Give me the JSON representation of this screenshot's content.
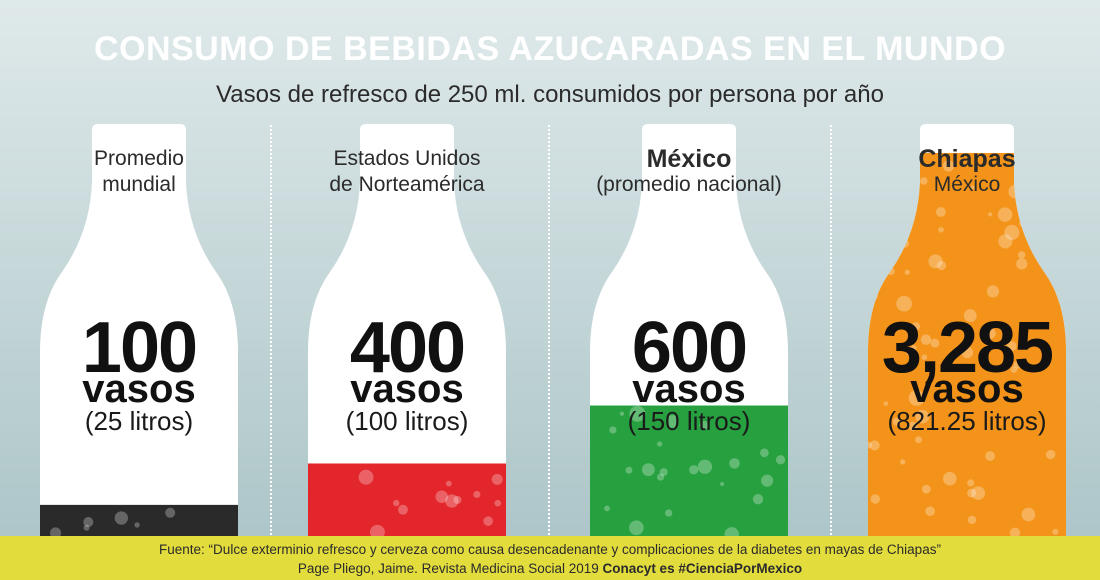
{
  "title": "CONSUMO DE BEBIDAS AZUCARADAS EN EL MUNDO",
  "subtitle": "Vasos de refresco de 250 ml. consumidos por persona por año",
  "panels": [
    {
      "line1": "Promedio",
      "line2": "mundial",
      "bold": false,
      "count": "100",
      "unit": "vasos",
      "liters": "(25 litros)",
      "color": "#2a2a2a"
    },
    {
      "line1": "Estados Unidos",
      "line2": "de Norteamérica",
      "bold": false,
      "count": "400",
      "unit": "vasos",
      "liters": "(100 litros)",
      "color": "#e3262b"
    },
    {
      "line1": "México",
      "line2": "(promedio nacional)",
      "bold": true,
      "count": "600",
      "unit": "vasos",
      "liters": "(150 litros)",
      "color": "#27a040"
    },
    {
      "line1": "Chiapas",
      "line2": "México",
      "bold": true,
      "count": "3,285",
      "unit": "vasos",
      "liters": "(821.25 litros)",
      "color": "#f39319"
    }
  ],
  "footer": {
    "line1": "Fuente: “Dulce exterminio refresco y cerveza como causa desencadenante y complicaciones de la diabetes en mayas de Chiapas”",
    "line2": "Page Pliego, Jaime. Revista Medicina Social 2019",
    "line2_bold": "Conacyt es #CienciaPorMexico"
  },
  "chart_data": {
    "type": "bar",
    "title": "CONSUMO DE BEBIDAS AZUCARADAS EN EL MUNDO",
    "subtitle": "Vasos de refresco de 250 ml. consumidos por persona por año",
    "categories": [
      "Promedio mundial",
      "Estados Unidos de Norteamérica",
      "México (promedio nacional)",
      "Chiapas México"
    ],
    "series": [
      {
        "name": "vasos",
        "values": [
          100,
          400,
          600,
          3285
        ]
      },
      {
        "name": "litros",
        "values": [
          25,
          100,
          150,
          821.25
        ]
      }
    ],
    "fill_fraction": [
      0.08,
      0.18,
      0.32,
      0.93
    ]
  }
}
